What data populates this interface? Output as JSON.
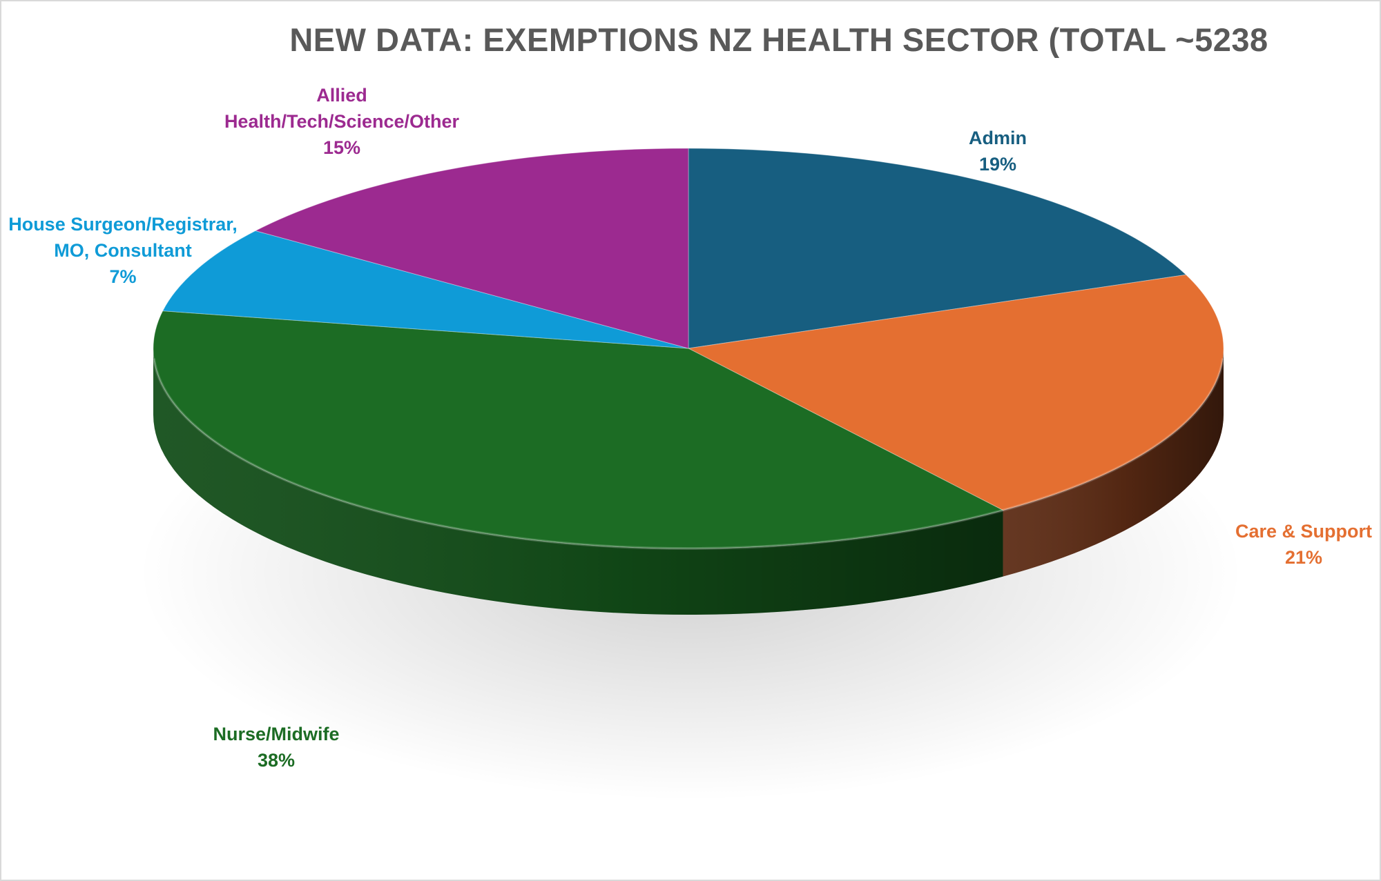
{
  "chart_data": {
    "type": "pie",
    "title": "NEW DATA: EXEMPTIONS NZ HEALTH SECTOR (TOTAL ~5238",
    "style": "3d",
    "slices": [
      {
        "name": "Admin",
        "value": 19,
        "pct_label": "19%",
        "color": "#175e80",
        "side_color": "#0e3b51"
      },
      {
        "name": "Care & Support",
        "value": 21,
        "pct_label": "21%",
        "color": "#e46f31",
        "side_color": "#5c2b14"
      },
      {
        "name": "Nurse/Midwife",
        "value": 38,
        "pct_label": "38%",
        "color": "#1c6c24",
        "side_color": "#124d18"
      },
      {
        "name": "House Surgeon/Registrar, MO, Consultant",
        "value": 7,
        "pct_label": "7%",
        "color": "#0f9bd7",
        "side_color": "#0a6a94"
      },
      {
        "name": "Allied Health/Tech/Science/Other",
        "value": 15,
        "pct_label": "15%",
        "color": "#9c2a90",
        "side_color": "#6a1c62"
      }
    ],
    "label_colors": {
      "Admin": "#175e80",
      "Care & Support": "#e46f31",
      "Nurse/Midwife": "#1c6c24",
      "House Surgeon/Registrar, MO, Consultant": "#0f9bd7",
      "Allied Health/Tech/Science/Other": "#9c2a90"
    }
  }
}
